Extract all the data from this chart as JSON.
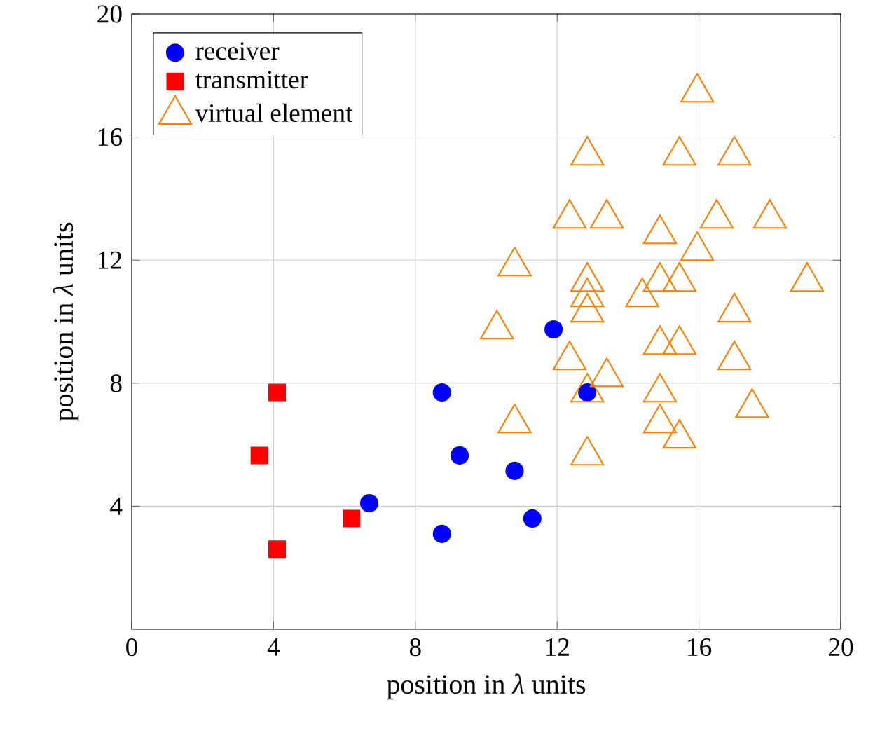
{
  "chart_data": {
    "type": "scatter",
    "xlabel": "position in *λ* units",
    "ylabel": "position in *λ* units",
    "xlim": [
      0,
      20
    ],
    "ylim": [
      0,
      20
    ],
    "xticks": [
      0,
      4,
      8,
      12,
      16,
      20
    ],
    "yticks": [
      4,
      8,
      12,
      16,
      20
    ],
    "grid": true,
    "legend": "top left",
    "series": [
      {
        "name": "receiver",
        "color": "#0000ff",
        "marker": "circle",
        "x": [
          11.9,
          8.75,
          9.25,
          10.8,
          6.7,
          11.3,
          8.75,
          12.85
        ],
        "values": [
          9.75,
          7.7,
          5.65,
          5.15,
          4.1,
          3.6,
          3.1,
          7.7
        ]
      },
      {
        "name": "transmitter",
        "color": "#ff0000",
        "marker": "square",
        "x": [
          4.1,
          3.6,
          6.2,
          4.1
        ],
        "values": [
          7.7,
          5.65,
          3.6,
          2.6
        ]
      },
      {
        "name": "virtual element",
        "color": "#ff8000",
        "marker": "triangle",
        "x": [
          15.95,
          12.85,
          15.45,
          17.0,
          12.35,
          13.4,
          16.5,
          18.0,
          14.9,
          15.95,
          10.8,
          12.85,
          14.9,
          15.45,
          19.05,
          12.85,
          14.4,
          12.85,
          17.0,
          10.3,
          14.9,
          15.45,
          12.35,
          17.0,
          13.4,
          12.85,
          14.9,
          17.5,
          10.8,
          14.9,
          15.45,
          12.85
        ],
        "values": [
          17.45,
          15.4,
          15.4,
          15.4,
          13.35,
          13.35,
          13.35,
          13.35,
          12.85,
          12.3,
          11.8,
          11.3,
          11.3,
          11.3,
          11.3,
          10.8,
          10.8,
          10.3,
          10.3,
          9.75,
          9.25,
          9.25,
          8.75,
          8.75,
          8.2,
          7.7,
          7.7,
          7.2,
          6.7,
          6.7,
          6.2,
          5.65
        ]
      }
    ]
  }
}
